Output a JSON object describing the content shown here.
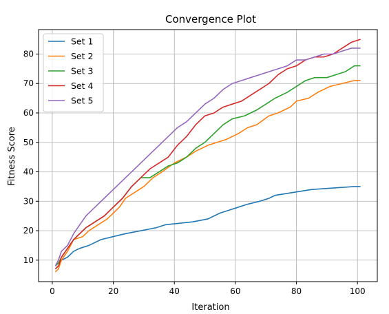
{
  "chart_data": {
    "type": "line",
    "title": "Convergence Plot",
    "xlabel": "Iteration",
    "ylabel": "Fitness Score",
    "xlim": [
      -4.5,
      106.5
    ],
    "ylim": [
      2.7,
      88.3
    ],
    "xticks": [
      0,
      20,
      40,
      60,
      80,
      100
    ],
    "yticks": [
      10,
      20,
      30,
      40,
      50,
      60,
      70,
      80
    ],
    "grid": true,
    "legend_position": "top-left",
    "series": [
      {
        "name": "Set 1",
        "color": "#1f77b4",
        "points": [
          [
            1,
            7
          ],
          [
            2,
            8
          ],
          [
            3,
            10
          ],
          [
            5,
            11
          ],
          [
            7,
            13
          ],
          [
            9,
            14
          ],
          [
            12,
            15
          ],
          [
            16,
            17
          ],
          [
            20,
            18
          ],
          [
            24,
            19
          ],
          [
            29,
            20
          ],
          [
            34,
            21
          ],
          [
            37,
            22
          ],
          [
            46,
            23
          ],
          [
            51,
            24
          ],
          [
            53,
            25
          ],
          [
            55,
            26
          ],
          [
            58,
            27
          ],
          [
            61,
            28
          ],
          [
            64,
            29
          ],
          [
            68,
            30
          ],
          [
            71,
            31
          ],
          [
            73,
            32
          ],
          [
            79,
            33
          ],
          [
            85,
            34
          ],
          [
            99,
            35
          ],
          [
            101,
            35
          ]
        ]
      },
      {
        "name": "Set 2",
        "color": "#ff7f0e",
        "points": [
          [
            1,
            6
          ],
          [
            2,
            7
          ],
          [
            3,
            10
          ],
          [
            5,
            13
          ],
          [
            7,
            17
          ],
          [
            10,
            18
          ],
          [
            12,
            20
          ],
          [
            15,
            22
          ],
          [
            18,
            24
          ],
          [
            20,
            26
          ],
          [
            22,
            28
          ],
          [
            24,
            31
          ],
          [
            27,
            33
          ],
          [
            30,
            35
          ],
          [
            33,
            38
          ],
          [
            36,
            40
          ],
          [
            40,
            43
          ],
          [
            44,
            45
          ],
          [
            47,
            47
          ],
          [
            51,
            49
          ],
          [
            54,
            50
          ],
          [
            57,
            51
          ],
          [
            61,
            53
          ],
          [
            64,
            55
          ],
          [
            67,
            56
          ],
          [
            71,
            59
          ],
          [
            74,
            60
          ],
          [
            78,
            62
          ],
          [
            80,
            64
          ],
          [
            84,
            65
          ],
          [
            87,
            67
          ],
          [
            91,
            69
          ],
          [
            95,
            70
          ],
          [
            99,
            71
          ],
          [
            101,
            71
          ]
        ]
      },
      {
        "name": "Set 3",
        "color": "#2ca02c",
        "points": [
          [
            1,
            8
          ],
          [
            2,
            9
          ],
          [
            3,
            11
          ],
          [
            5,
            14
          ],
          [
            7,
            17
          ],
          [
            9,
            19
          ],
          [
            11,
            21
          ],
          [
            14,
            23
          ],
          [
            17,
            25
          ],
          [
            20,
            28
          ],
          [
            23,
            31
          ],
          [
            26,
            35
          ],
          [
            29,
            38
          ],
          [
            32,
            38
          ],
          [
            35,
            40
          ],
          [
            38,
            42
          ],
          [
            41,
            43
          ],
          [
            44,
            45
          ],
          [
            47,
            48
          ],
          [
            50,
            50
          ],
          [
            53,
            53
          ],
          [
            56,
            56
          ],
          [
            59,
            58
          ],
          [
            63,
            59
          ],
          [
            67,
            61
          ],
          [
            70,
            63
          ],
          [
            73,
            65
          ],
          [
            77,
            67
          ],
          [
            80,
            69
          ],
          [
            83,
            71
          ],
          [
            86,
            72
          ],
          [
            90,
            72
          ],
          [
            93,
            73
          ],
          [
            96,
            74
          ],
          [
            99,
            76
          ],
          [
            101,
            76
          ]
        ]
      },
      {
        "name": "Set 4",
        "color": "#d62728",
        "points": [
          [
            1,
            7
          ],
          [
            2,
            8
          ],
          [
            3,
            11
          ],
          [
            5,
            14
          ],
          [
            7,
            17
          ],
          [
            9,
            19
          ],
          [
            11,
            21
          ],
          [
            14,
            23
          ],
          [
            17,
            25
          ],
          [
            20,
            28
          ],
          [
            23,
            31
          ],
          [
            26,
            35
          ],
          [
            29,
            38
          ],
          [
            32,
            41
          ],
          [
            35,
            43
          ],
          [
            38,
            45
          ],
          [
            41,
            49
          ],
          [
            44,
            52
          ],
          [
            47,
            56
          ],
          [
            50,
            59
          ],
          [
            53,
            60
          ],
          [
            56,
            62
          ],
          [
            59,
            63
          ],
          [
            62,
            64
          ],
          [
            65,
            66
          ],
          [
            68,
            68
          ],
          [
            71,
            70
          ],
          [
            74,
            73
          ],
          [
            77,
            75
          ],
          [
            80,
            76
          ],
          [
            83,
            78
          ],
          [
            86,
            79
          ],
          [
            89,
            79
          ],
          [
            92,
            80
          ],
          [
            95,
            82
          ],
          [
            98,
            84
          ],
          [
            101,
            85
          ]
        ]
      },
      {
        "name": "Set 5",
        "color": "#9467bd",
        "points": [
          [
            1,
            8
          ],
          [
            2,
            10
          ],
          [
            3,
            13
          ],
          [
            5,
            15
          ],
          [
            7,
            19
          ],
          [
            9,
            22
          ],
          [
            11,
            25
          ],
          [
            14,
            28
          ],
          [
            17,
            31
          ],
          [
            20,
            34
          ],
          [
            23,
            37
          ],
          [
            26,
            40
          ],
          [
            29,
            43
          ],
          [
            32,
            46
          ],
          [
            35,
            49
          ],
          [
            38,
            52
          ],
          [
            41,
            55
          ],
          [
            44,
            57
          ],
          [
            47,
            60
          ],
          [
            50,
            63
          ],
          [
            53,
            65
          ],
          [
            56,
            68
          ],
          [
            59,
            70
          ],
          [
            62,
            71
          ],
          [
            65,
            72
          ],
          [
            68,
            73
          ],
          [
            71,
            74
          ],
          [
            74,
            75
          ],
          [
            77,
            76
          ],
          [
            80,
            78
          ],
          [
            83,
            78
          ],
          [
            86,
            79
          ],
          [
            89,
            80
          ],
          [
            92,
            80
          ],
          [
            95,
            81
          ],
          [
            98,
            82
          ],
          [
            101,
            82
          ]
        ]
      }
    ]
  }
}
